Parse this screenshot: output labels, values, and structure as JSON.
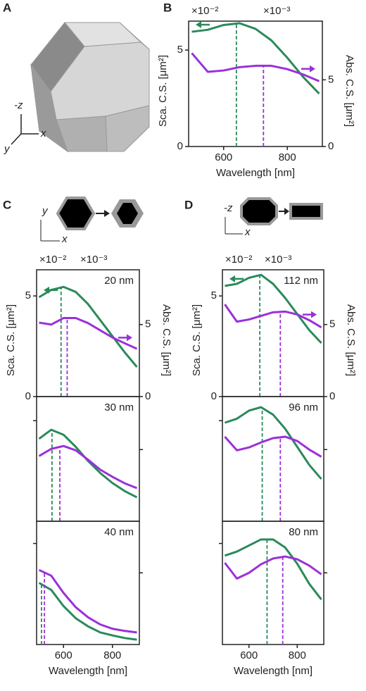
{
  "panel_labels": [
    "A",
    "B",
    "C",
    "D"
  ],
  "shape_axes": [
    "-z",
    "x",
    "y"
  ],
  "inset_c_axes": [
    "y",
    "x"
  ],
  "inset_d_axes": [
    "-z",
    "x"
  ],
  "chart_data": [
    {
      "type": "line",
      "xlabel": "Wavelength [nm]",
      "ylabel": "Sca. C.S. [μm²]",
      "y2label": "Abs. C.S. [μm²]",
      "y_multiplier": "×10⁻²",
      "y2_multiplier": "×10⁻³",
      "x": [
        500,
        550,
        600,
        650,
        700,
        750,
        800,
        850,
        900
      ],
      "xlim": [
        490,
        910
      ],
      "xticks": [
        600,
        800
      ],
      "ylim": [
        0,
        6.5
      ],
      "yticks": [
        0,
        5
      ],
      "y2lim": [
        0,
        9.4
      ],
      "y2ticks": [
        0,
        5
      ],
      "series": [
        {
          "color": "#2a8a5a",
          "values": [
            5.95,
            6.05,
            6.3,
            6.39,
            6.1,
            5.5,
            4.6,
            3.6,
            2.74
          ],
          "peak": 640
        },
        {
          "color": "#9b30d9",
          "axis": "y2",
          "values": [
            7.0,
            5.6,
            5.7,
            5.95,
            6.05,
            6.05,
            5.8,
            5.4,
            4.9
          ],
          "peak": 725
        }
      ]
    },
    {
      "type": "line",
      "ylabel": "Sca. C.S. [μm²]",
      "y2label": "Abs. C.S. [μm²]",
      "y_multiplier": "×10⁻²",
      "y2_multiplier": "×10⁻³",
      "annotation": "20 nm",
      "x": [
        500,
        550,
        600,
        650,
        700,
        750,
        800,
        850,
        900
      ],
      "xlim": [
        490,
        910
      ],
      "ylim": [
        0,
        6.3
      ],
      "yticks": [
        0,
        5
      ],
      "y2lim": [
        0,
        8.8
      ],
      "y2ticks": [
        0,
        5
      ],
      "series": [
        {
          "color": "#2a8a5a",
          "values": [
            4.94,
            5.3,
            5.45,
            5.2,
            4.6,
            3.8,
            3.0,
            2.2,
            1.47
          ],
          "peak": 590
        },
        {
          "color": "#9b30d9",
          "axis": "y2",
          "values": [
            5.13,
            5.0,
            5.45,
            5.45,
            5.1,
            4.6,
            4.1,
            3.7,
            3.32
          ],
          "peak": 615
        }
      ]
    },
    {
      "type": "line",
      "annotation": "30 nm",
      "y_tick_labels": false,
      "x": [
        500,
        550,
        600,
        650,
        700,
        750,
        800,
        850,
        900
      ],
      "xlim": [
        490,
        910
      ],
      "ylim": [
        0,
        6.2
      ],
      "yticks": [
        5
      ],
      "y2lim": [
        0,
        8.7
      ],
      "y2ticks": [
        5
      ],
      "series": [
        {
          "color": "#2a8a5a",
          "values": [
            4.1,
            4.55,
            4.3,
            3.7,
            3.0,
            2.4,
            1.9,
            1.5,
            1.19
          ],
          "peak": 553
        },
        {
          "color": "#9b30d9",
          "axis": "y2",
          "values": [
            4.55,
            5.05,
            5.25,
            4.95,
            4.3,
            3.6,
            3.1,
            2.65,
            2.31
          ],
          "peak": 585
        }
      ]
    },
    {
      "type": "line",
      "annotation": "40 nm",
      "y_tick_labels": false,
      "xlabel": "Wavelength [nm]",
      "x": [
        500,
        550,
        600,
        650,
        700,
        750,
        800,
        850,
        900
      ],
      "xlim": [
        490,
        910
      ],
      "xticks": [
        600,
        800
      ],
      "ylim": [
        0,
        6.1
      ],
      "yticks": [
        5
      ],
      "y2lim": [
        0,
        8.6
      ],
      "y2ticks": [
        5
      ],
      "series": [
        {
          "color": "#2a8a5a",
          "values": [
            3.05,
            2.7,
            1.9,
            1.3,
            0.9,
            0.6,
            0.45,
            0.32,
            0.24
          ],
          "peak": 510
        },
        {
          "color": "#9b30d9",
          "axis": "y2",
          "values": [
            5.2,
            4.8,
            3.6,
            2.6,
            1.9,
            1.4,
            1.1,
            0.95,
            0.84
          ],
          "peak": 522
        }
      ]
    },
    {
      "type": "line",
      "ylabel": "Sca. C.S. [μm²]",
      "y2label": "Abs. C.S. [μm²]",
      "y_multiplier": "×10⁻²",
      "y2_multiplier": "×10⁻³",
      "annotation": "112 nm",
      "x": [
        500,
        550,
        600,
        650,
        700,
        750,
        800,
        850,
        900
      ],
      "xlim": [
        490,
        910
      ],
      "ylim": [
        0,
        6.3
      ],
      "yticks": [
        0,
        5
      ],
      "y2lim": [
        0,
        8.8
      ],
      "y2ticks": [
        0,
        5
      ],
      "series": [
        {
          "color": "#2a8a5a",
          "values": [
            5.5,
            5.6,
            5.9,
            6.05,
            5.6,
            4.9,
            4.1,
            3.3,
            2.66
          ],
          "peak": 645
        },
        {
          "color": "#9b30d9",
          "axis": "y2",
          "values": [
            6.4,
            5.2,
            5.35,
            5.6,
            5.85,
            5.9,
            5.7,
            5.3,
            4.8
          ],
          "peak": 730
        }
      ]
    },
    {
      "type": "line",
      "annotation": "96 nm",
      "y_tick_labels": false,
      "x": [
        500,
        550,
        600,
        650,
        700,
        750,
        800,
        850,
        900
      ],
      "xlim": [
        490,
        910
      ],
      "ylim": [
        0,
        6.2
      ],
      "yticks": [
        5
      ],
      "y2lim": [
        0,
        8.7
      ],
      "y2ticks": [
        5
      ],
      "series": [
        {
          "color": "#2a8a5a",
          "values": [
            4.9,
            5.1,
            5.5,
            5.67,
            5.3,
            4.6,
            3.7,
            2.8,
            2.1
          ],
          "peak": 655
        },
        {
          "color": "#9b30d9",
          "axis": "y2",
          "values": [
            5.9,
            4.95,
            5.15,
            5.5,
            5.8,
            5.9,
            5.6,
            5.0,
            4.5
          ],
          "peak": 730
        }
      ]
    },
    {
      "type": "line",
      "annotation": "80 nm",
      "y_tick_labels": false,
      "xlabel": "Wavelength [nm]",
      "x": [
        500,
        550,
        600,
        650,
        700,
        750,
        800,
        850,
        900
      ],
      "xlim": [
        490,
        910
      ],
      "xticks": [
        600,
        800
      ],
      "ylim": [
        0,
        6.1
      ],
      "yticks": [
        5
      ],
      "y2lim": [
        0,
        8.6
      ],
      "y2ticks": [
        5
      ],
      "series": [
        {
          "color": "#2a8a5a",
          "values": [
            4.4,
            4.6,
            4.9,
            5.2,
            5.2,
            4.8,
            4.0,
            3.0,
            2.23
          ],
          "peak": 675
        },
        {
          "color": "#9b30d9",
          "axis": "y2",
          "values": [
            5.7,
            4.6,
            5.0,
            5.6,
            6.0,
            6.14,
            5.95,
            5.5,
            4.9
          ],
          "peak": 740
        }
      ]
    }
  ]
}
